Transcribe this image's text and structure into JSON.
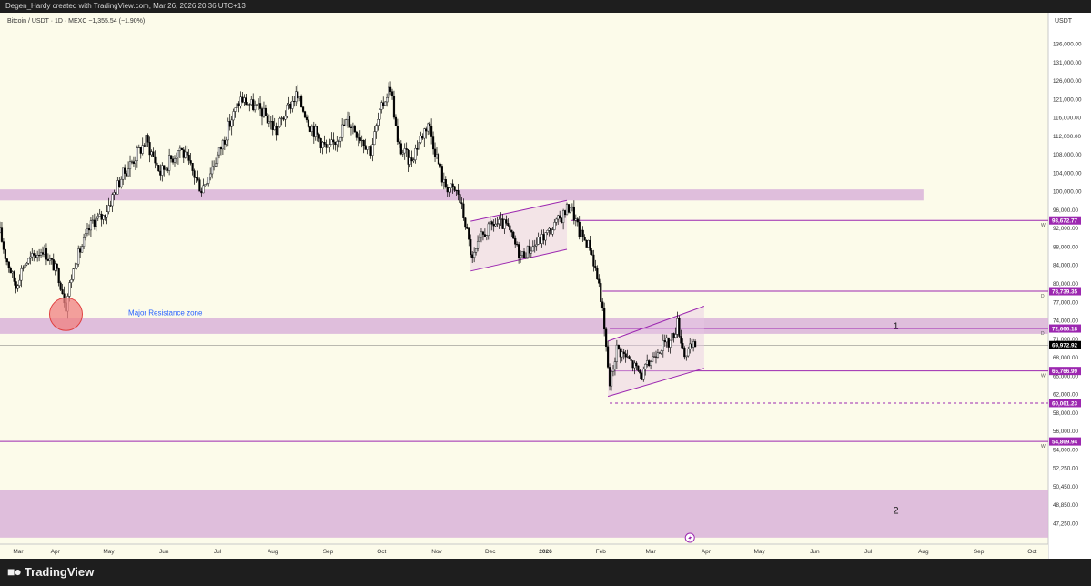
{
  "header": {
    "attribution": "Degen_Hardy created with TradingView.com, Mar 26, 2026 20:36 UTC+13"
  },
  "chart": {
    "symbol_line": "Bitcoin / USDT · 1D · MEXC  −1,355.54 (−1.90%)",
    "currency": "USDT",
    "annotation_zone": "Major Resistance zone",
    "zone_label_1": "1",
    "zone_label_2": "2",
    "colors": {
      "background": "#fcfbea",
      "zone": "#d9b3d9",
      "line": "#9c27b0",
      "tag": "#9c27b0",
      "candle": "#000000",
      "circle": "#f08080",
      "circle_stroke": "#e04040",
      "annotation": "#2962ff"
    }
  },
  "footer": {
    "brand": "TradingView"
  },
  "chart_data": {
    "type": "candlestick",
    "title": "Bitcoin / USDT · 1D · MEXC",
    "change": "−1,355.54 (−1.90%)",
    "ylabel": "USDT",
    "ylim": [
      46000,
      140000
    ],
    "y_ticks": [
      "136,000.00",
      "131,000.00",
      "126,000.00",
      "121,000.00",
      "116,000.00",
      "112,000.00",
      "108,000.00",
      "104,000.00",
      "100,000.00",
      "96,000.00",
      "92,000.00",
      "88,000.00",
      "84,000.00",
      "80,000.00",
      "77,000.00",
      "74,000.00",
      "71,000.00",
      "68,000.00",
      "65,000.00",
      "62,000.00",
      "58,000.00",
      "56,000.00",
      "54,000.00",
      "52,250.00",
      "50,450.00",
      "48,850.00",
      "47,250.00"
    ],
    "x_ticks": [
      "Mar",
      "Apr",
      "May",
      "Jun",
      "Jul",
      "Aug",
      "Sep",
      "Oct",
      "Nov",
      "Dec",
      "2026",
      "Feb",
      "Mar",
      "Apr",
      "May",
      "Jun",
      "Jul",
      "Aug",
      "Sep",
      "Oct"
    ],
    "x_range": [
      "2025-03-01",
      "2026-10-10"
    ],
    "price_levels": [
      {
        "label": "93,672.77",
        "value": 93672.77,
        "marker": "W",
        "style": "solid"
      },
      {
        "label": "78,739.35",
        "value": 78739.35,
        "marker": "D",
        "style": "solid"
      },
      {
        "label": "72,666.18",
        "value": 72666.18,
        "marker": "D",
        "style": "solid"
      },
      {
        "label": "65,766.99",
        "value": 65766.99,
        "marker": "W",
        "style": "solid"
      },
      {
        "label": "60,061.23",
        "value": 60061.23,
        "marker": "",
        "style": "dashed"
      },
      {
        "label": "54,869.94",
        "value": 54869.94,
        "marker": "W",
        "style": "solid"
      }
    ],
    "current_price": {
      "label": "69,972.92",
      "value": 69972.92
    },
    "zones": [
      {
        "from": 98000,
        "to": 100400,
        "start": "2025-03-01",
        "end": "2026-08-01"
      },
      {
        "from": 71800,
        "to": 74400,
        "start": "2025-03-01",
        "end": "2026-10-10",
        "label": "1"
      },
      {
        "from": 46000,
        "to": 50100,
        "start": "2025-03-01",
        "end": "2026-10-10",
        "label": "2"
      }
    ],
    "channels": [
      {
        "start": "2025-11-20",
        "end": "2026-01-13",
        "upper": [
          93500,
          98000
        ],
        "lower": [
          82700,
          87400
        ]
      },
      {
        "start": "2026-02-05",
        "end": "2026-03-31",
        "upper": [
          70600,
          76300
        ],
        "lower": [
          61500,
          66200
        ]
      }
    ],
    "circle_marker": {
      "date": "2025-04-07",
      "price": 75000
    },
    "ohlc_anchors": [
      [
        "2025-03-01",
        91000
      ],
      [
        "2025-03-04",
        86000
      ],
      [
        "2025-03-10",
        79500
      ],
      [
        "2025-03-14",
        84000
      ],
      [
        "2025-03-25",
        87500
      ],
      [
        "2025-04-02",
        82500
      ],
      [
        "2025-04-07",
        76500
      ],
      [
        "2025-04-12",
        84500
      ],
      [
        "2025-04-22",
        93500
      ],
      [
        "2025-04-28",
        94500
      ],
      [
        "2025-05-08",
        103000
      ],
      [
        "2025-05-22",
        111000
      ],
      [
        "2025-05-30",
        104000
      ],
      [
        "2025-06-10",
        109500
      ],
      [
        "2025-06-22",
        100500
      ],
      [
        "2025-07-02",
        108500
      ],
      [
        "2025-07-14",
        121000
      ],
      [
        "2025-07-25",
        118000
      ],
      [
        "2025-08-03",
        113000
      ],
      [
        "2025-08-14",
        122000
      ],
      [
        "2025-08-22",
        114500
      ],
      [
        "2025-09-01",
        108500
      ],
      [
        "2025-09-12",
        115500
      ],
      [
        "2025-09-25",
        109000
      ],
      [
        "2025-10-02",
        120000
      ],
      [
        "2025-10-06",
        124500
      ],
      [
        "2025-10-10",
        110000
      ],
      [
        "2025-10-17",
        106500
      ],
      [
        "2025-10-27",
        115000
      ],
      [
        "2025-11-05",
        101500
      ],
      [
        "2025-11-13",
        99500
      ],
      [
        "2025-11-17",
        93000
      ],
      [
        "2025-11-21",
        85000
      ],
      [
        "2025-11-26",
        90000
      ],
      [
        "2025-12-03",
        93000
      ],
      [
        "2025-12-10",
        92500
      ],
      [
        "2025-12-18",
        86000
      ],
      [
        "2025-12-25",
        88000
      ],
      [
        "2026-01-05",
        92000
      ],
      [
        "2026-01-12",
        95500
      ],
      [
        "2026-01-15",
        97000
      ],
      [
        "2026-01-20",
        91000
      ],
      [
        "2026-01-26",
        88000
      ],
      [
        "2026-02-01",
        78000
      ],
      [
        "2026-02-06",
        63500
      ],
      [
        "2026-02-10",
        69500
      ],
      [
        "2026-02-17",
        67500
      ],
      [
        "2026-02-24",
        65000
      ],
      [
        "2026-03-05",
        69500
      ],
      [
        "2026-03-12",
        70500
      ],
      [
        "2026-03-16",
        73500
      ],
      [
        "2026-03-20",
        68500
      ],
      [
        "2026-03-26",
        69973
      ]
    ]
  }
}
